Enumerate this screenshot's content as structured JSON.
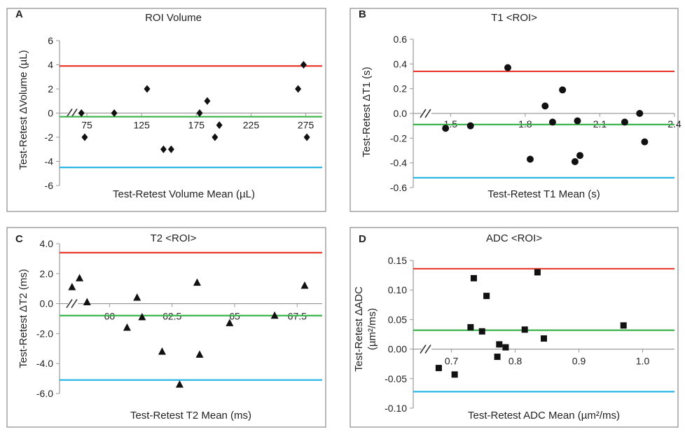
{
  "chart_data": [
    {
      "panel": "A",
      "type": "scatter",
      "title": "ROI Volume",
      "xlabel": "Test-Retest Volume Mean (µL)",
      "ylabel": "Test-Retest ΔVolume (µL)",
      "ylim": [
        -6,
        6
      ],
      "yticks": [
        "6",
        "4",
        "2",
        "0",
        "-2",
        "-4",
        "-6"
      ],
      "xlim": [
        50,
        290
      ],
      "xticks": [
        "75",
        "125",
        "175",
        "225",
        "275"
      ],
      "marker": "diamond",
      "points": [
        [
          70,
          0
        ],
        [
          73,
          -2
        ],
        [
          100,
          0
        ],
        [
          130,
          2
        ],
        [
          145,
          -3
        ],
        [
          152,
          -3
        ],
        [
          178,
          0
        ],
        [
          185,
          1
        ],
        [
          192,
          -2
        ],
        [
          196,
          -1
        ],
        [
          268,
          2
        ],
        [
          273,
          4
        ],
        [
          276,
          -2
        ]
      ],
      "lines": [
        {
          "name": "upper",
          "value": 3.9,
          "color": "#e8392c"
        },
        {
          "name": "mean",
          "value": -0.3,
          "color": "#3cb44b"
        },
        {
          "name": "lower",
          "value": -4.5,
          "color": "#2ab7e6"
        }
      ]
    },
    {
      "panel": "B",
      "type": "scatter",
      "title": "T1 <ROI>",
      "xlabel": "Test-Retest T1 Mean (s)",
      "ylabel": "Test-Retest ΔT1 (s)",
      "ylim": [
        -0.6,
        0.6
      ],
      "yticks": [
        "0.6",
        "0.4",
        "0.2",
        "0.0",
        "-0.2",
        "-0.4",
        "-0.6"
      ],
      "xlim": [
        1.35,
        2.4
      ],
      "xticks": [
        "1.5",
        "1.8",
        "2.1",
        "2.4"
      ],
      "marker": "circle",
      "points": [
        [
          1.48,
          -0.12
        ],
        [
          1.58,
          -0.1
        ],
        [
          1.73,
          0.37
        ],
        [
          1.82,
          -0.37
        ],
        [
          1.88,
          0.06
        ],
        [
          1.91,
          -0.07
        ],
        [
          1.95,
          0.19
        ],
        [
          2.0,
          -0.39
        ],
        [
          2.02,
          -0.34
        ],
        [
          2.01,
          -0.06
        ],
        [
          2.2,
          -0.07
        ],
        [
          2.26,
          0.0
        ],
        [
          2.28,
          -0.23
        ]
      ],
      "lines": [
        {
          "name": "upper",
          "value": 0.34,
          "color": "#e8392c"
        },
        {
          "name": "mean",
          "value": -0.09,
          "color": "#3cb44b"
        },
        {
          "name": "lower",
          "value": -0.52,
          "color": "#2ab7e6"
        }
      ]
    },
    {
      "panel": "C",
      "type": "scatter",
      "title": "T2 <ROI>",
      "xlabel": "Test-Retest T2 Mean (ms)",
      "ylabel": "Test-Retest ΔT2 (ms)",
      "ylim": [
        -6,
        4
      ],
      "yticks": [
        "4.0",
        "2.0",
        "0.0",
        "-2.0",
        "-4.0",
        "-6.0"
      ],
      "xlim": [
        58,
        68.5
      ],
      "xticks": [
        "60",
        "62.5",
        "65",
        "67.5"
      ],
      "marker": "triangle",
      "points": [
        [
          58.5,
          1.1
        ],
        [
          58.8,
          1.7
        ],
        [
          59.1,
          0.1
        ],
        [
          60.7,
          -1.6
        ],
        [
          61.1,
          0.4
        ],
        [
          61.3,
          -0.9
        ],
        [
          62.1,
          -3.2
        ],
        [
          62.8,
          -5.4
        ],
        [
          63.5,
          1.4
        ],
        [
          63.6,
          -3.4
        ],
        [
          64.8,
          -1.3
        ],
        [
          66.6,
          -0.8
        ],
        [
          67.8,
          1.2
        ]
      ],
      "lines": [
        {
          "name": "upper",
          "value": 3.4,
          "color": "#e8392c"
        },
        {
          "name": "mean",
          "value": -0.8,
          "color": "#3cb44b"
        },
        {
          "name": "lower",
          "value": -5.1,
          "color": "#2ab7e6"
        }
      ]
    },
    {
      "panel": "D",
      "type": "scatter",
      "title": "ADC <ROI>",
      "xlabel": "Test-Retest ADC Mean (µm²/ms)",
      "ylabel": "Test-Retest ΔADC (µm²/ms)",
      "ylim": [
        -0.1,
        0.15
      ],
      "yticks": [
        "0.15",
        "0.10",
        "0.05",
        "0.00",
        "-0.05",
        "-0.10"
      ],
      "xlim": [
        0.64,
        1.05
      ],
      "xticks": [
        "0.7",
        "0.8",
        "0.9",
        "1.0"
      ],
      "marker": "square",
      "points": [
        [
          0.68,
          -0.032
        ],
        [
          0.705,
          -0.043
        ],
        [
          0.73,
          0.037
        ],
        [
          0.735,
          0.12
        ],
        [
          0.748,
          0.03
        ],
        [
          0.755,
          0.09
        ],
        [
          0.772,
          -0.013
        ],
        [
          0.775,
          0.008
        ],
        [
          0.785,
          0.003
        ],
        [
          0.815,
          0.033
        ],
        [
          0.835,
          0.13
        ],
        [
          0.845,
          0.018
        ],
        [
          0.97,
          0.04
        ]
      ],
      "lines": [
        {
          "name": "upper",
          "value": 0.136,
          "color": "#e8392c"
        },
        {
          "name": "mean",
          "value": 0.032,
          "color": "#3cb44b"
        },
        {
          "name": "lower",
          "value": -0.072,
          "color": "#2ab7e6"
        }
      ]
    }
  ]
}
